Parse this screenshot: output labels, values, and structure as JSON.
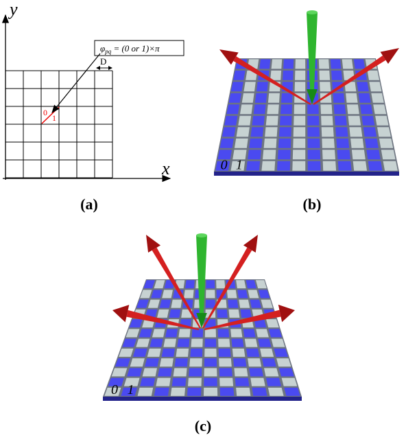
{
  "panel_a": {
    "y_axis": "y",
    "x_axis": "x",
    "formula_symbol": "φ",
    "formula_sub": "pq",
    "formula_rest": " = (0 or 1)×π",
    "spacing": "D",
    "cell_labels": [
      "0",
      "1"
    ],
    "caption": "(a)"
  },
  "panel_b": {
    "board_labels": [
      "0",
      "1"
    ],
    "caption": "(b)"
  },
  "panel_c": {
    "board_labels": [
      "0",
      "1"
    ],
    "caption": "(c)"
  }
}
